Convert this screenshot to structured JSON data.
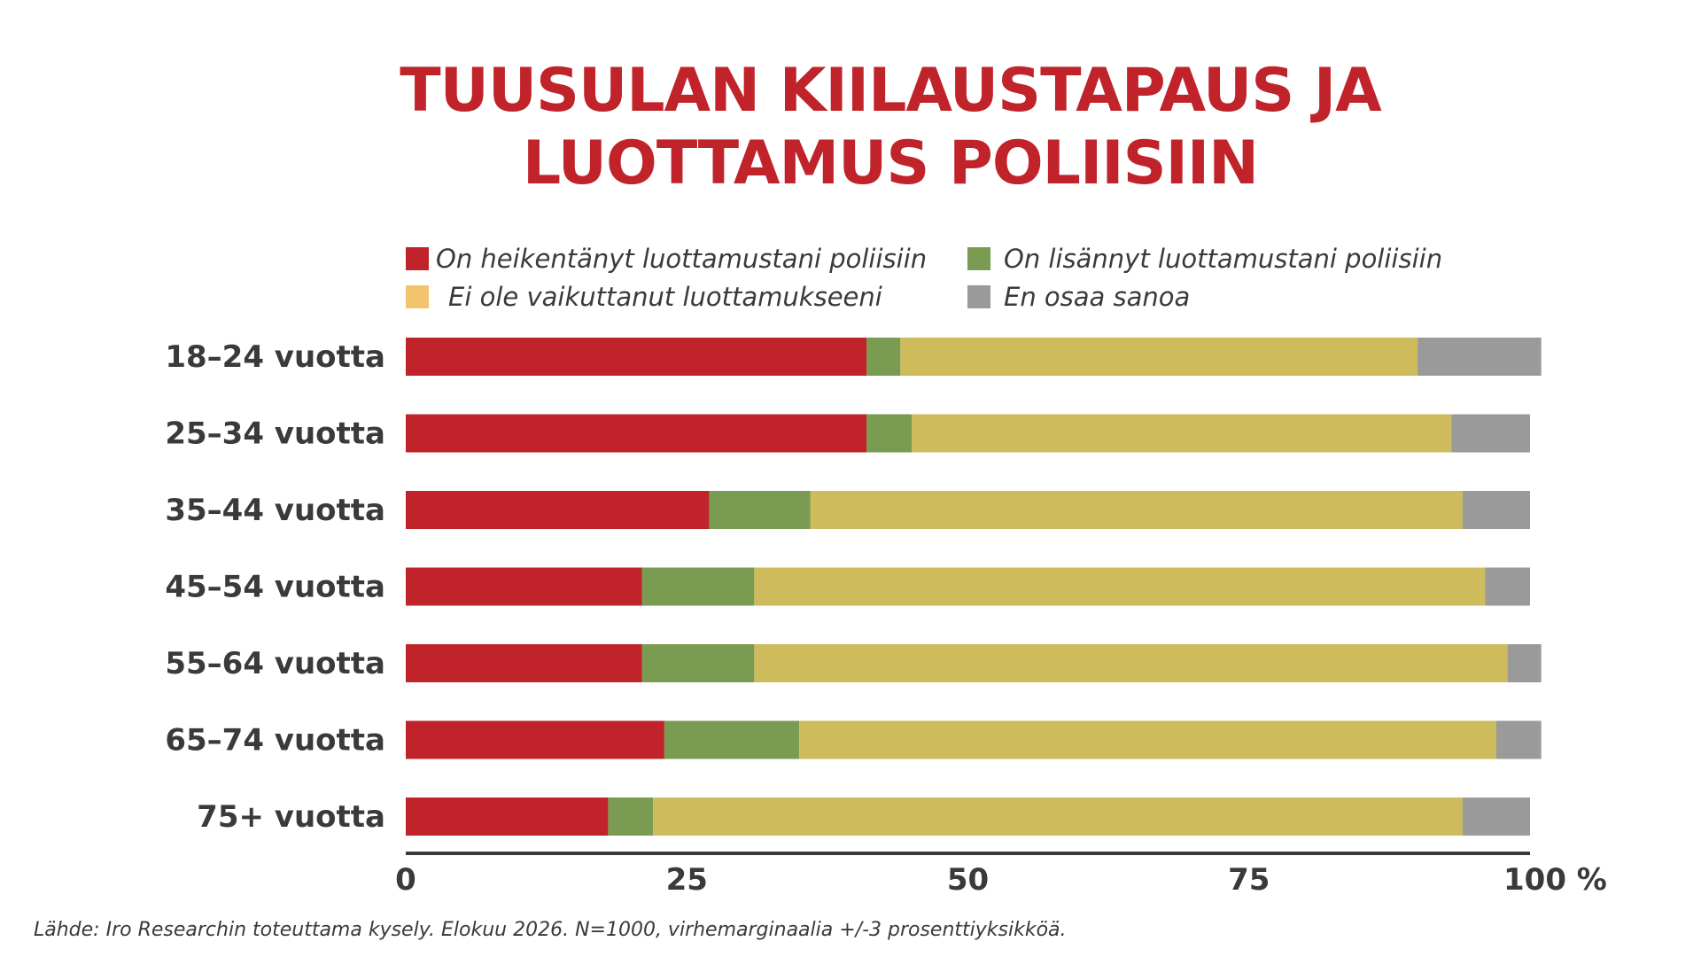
{
  "chart_data": {
    "type": "bar",
    "orientation": "horizontal",
    "stacked": true,
    "title_lines": [
      "TUUSULAN KIILAUSTAPAUS JA",
      "LUOTTAMUS POLIISIIN"
    ],
    "categories": [
      "18–24 vuotta",
      "25–34 vuotta",
      "35–44 vuotta",
      "45–54 vuotta",
      "55–64 vuotta",
      "65–74 vuotta",
      "75+ vuotta"
    ],
    "series": [
      {
        "name": "On heikentänyt luottamustani poliisiin",
        "color": "#c0232a",
        "values": [
          41,
          41,
          27,
          21,
          21,
          23,
          18
        ]
      },
      {
        "name": "On lisännyt luottamustani poliisiin",
        "color": "#799b52",
        "values": [
          3,
          4,
          9,
          10,
          10,
          12,
          4
        ]
      },
      {
        "name": "Ei ole vaikuttanut luottamukseeni",
        "color": "#cebb5c",
        "values": [
          46,
          48,
          58,
          65,
          67,
          62,
          72
        ]
      },
      {
        "name": "En osaa sanoa",
        "color": "#9a9a9a",
        "values": [
          11,
          7,
          6,
          4,
          3,
          4,
          6
        ]
      }
    ],
    "legend_swatch_colors": [
      "#c0232a",
      "#799b52",
      "#f2c46d",
      "#9a9a9a"
    ],
    "xlim": [
      0,
      100
    ],
    "xticks": [
      0,
      25,
      50,
      75,
      100
    ],
    "xtick_labels": [
      "0",
      "25",
      "50",
      "75",
      "100 %"
    ],
    "grid": false,
    "legend_position": "top"
  },
  "source_note": "Lähde: Iro Researchin toteuttama kysely. Elokuu 2026. N=1000, virhemarginaalia +/-3 prosenttiyksikköä."
}
